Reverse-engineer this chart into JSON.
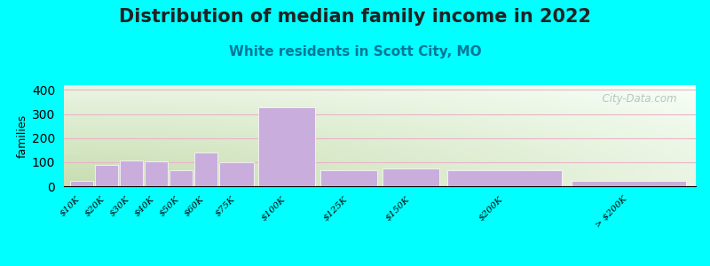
{
  "title": "Distribution of median family income in 2022",
  "subtitle": "White residents in Scott City, MO",
  "ylabel": "families",
  "categories": [
    "$10K",
    "$20K",
    "$30K",
    "$40K",
    "$50K",
    "$60K",
    "$75K",
    "$100K",
    "$125K",
    "$150K",
    "$200K",
    "> $200K"
  ],
  "bin_edges": [
    0,
    10,
    20,
    30,
    40,
    50,
    60,
    75,
    100,
    125,
    150,
    200,
    250
  ],
  "values": [
    22,
    90,
    108,
    103,
    65,
    140,
    100,
    328,
    65,
    72,
    65,
    22
  ],
  "bar_color": "#c9aedd",
  "bar_edgecolor": "#ffffff",
  "ylim": [
    0,
    420
  ],
  "yticks": [
    0,
    100,
    200,
    300,
    400
  ],
  "grid_color": "#e8b4c8",
  "bg_color_topleft": "#c8ddb0",
  "bg_color_right": "#f8fff8",
  "bg_color_bottom": "#e8f8e0",
  "outer_bg": "#00ffff",
  "title_fontsize": 15,
  "subtitle_fontsize": 11,
  "title_color": "#222222",
  "subtitle_color": "#007799",
  "watermark_text": "  City-Data.com",
  "watermark_color": "#aabbbb"
}
